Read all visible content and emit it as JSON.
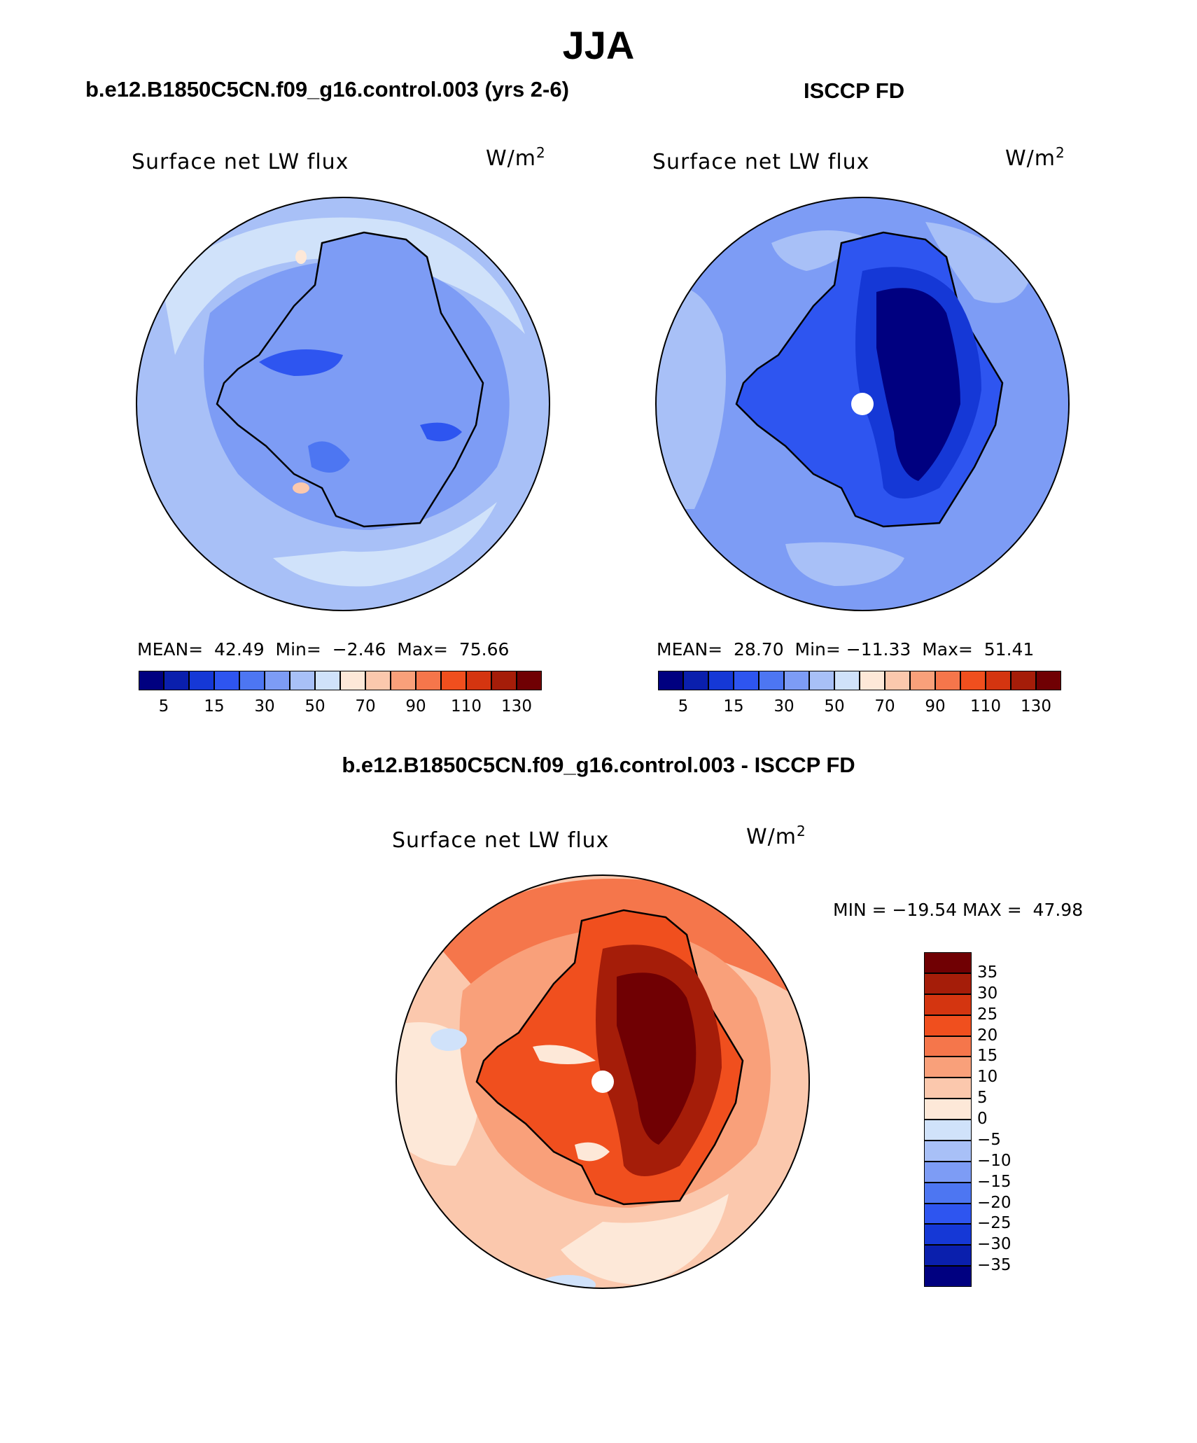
{
  "figure": {
    "season_title": "JJA",
    "model_case_title": "b.e12.B1850C5CN.f09_g16.control.003 (yrs 2-6)",
    "obs_title": "ISCCP FD",
    "diff_title": "b.e12.B1850C5CN.f09_g16.control.003 - ISCCP FD"
  },
  "panels": {
    "model": {
      "variable": "Surface net LW flux",
      "units_base": "W/m",
      "units_exp": "2",
      "mean_label": "MEAN=",
      "mean": "42.49",
      "min_label": "Min=",
      "min": "−2.46",
      "max_label": "Max=",
      "max": "75.66"
    },
    "obs": {
      "variable": "Surface net LW flux",
      "units_base": "W/m",
      "units_exp": "2",
      "mean_label": "MEAN=",
      "mean": "28.70",
      "min_label": "Min=",
      "min": "−11.33",
      "max_label": "Max=",
      "max": "51.41"
    },
    "diff": {
      "variable": "Surface net LW flux",
      "units_base": "W/m",
      "units_exp": "2",
      "minmax_text": "MIN = −19.54 MAX =  47.98"
    }
  },
  "colorbars": {
    "abs": {
      "colors": [
        "#000080",
        "#0a1fad",
        "#1538d6",
        "#2e55f0",
        "#4d76f2",
        "#7d9cf5",
        "#a8c0f7",
        "#d0e2fa",
        "#fde8d8",
        "#fbc8ad",
        "#f9a07a",
        "#f5764b",
        "#f04f1e",
        "#d43510",
        "#a51d09",
        "#700003"
      ],
      "tick_labels": [
        "5",
        "15",
        "30",
        "50",
        "70",
        "90",
        "110",
        "130"
      ]
    },
    "diff": {
      "colors": [
        "#000080",
        "#0a1fad",
        "#1538d6",
        "#2e55f0",
        "#4d76f2",
        "#7d9cf5",
        "#a8c0f7",
        "#d0e2fa",
        "#fde8d8",
        "#fbc8ad",
        "#f9a07a",
        "#f5764b",
        "#f04f1e",
        "#d43510",
        "#a51d09",
        "#700003"
      ],
      "tick_labels": [
        "35",
        "30",
        "25",
        "20",
        "15",
        "10",
        "5",
        "0",
        "−5",
        "−10",
        "−15",
        "−20",
        "−25",
        "−30",
        "−35"
      ]
    }
  },
  "map_colors": {
    "model": {
      "ocean": "#a8c0f7",
      "ocean_light": "#d0e2fa",
      "land": "#7d9cf5",
      "land_dark": "#4d76f2",
      "accent": "#fbc8ad"
    },
    "obs": {
      "ocean": "#7d9cf5",
      "ocean_light": "#a8c0f7",
      "land": "#2e55f0",
      "land_dark": "#1538d6",
      "core": "#000080"
    },
    "diff": {
      "ocean": "#f9a07a",
      "ocean_light": "#fde8d8",
      "ocean_mid": "#fbc8ad",
      "land": "#f04f1e",
      "land_dark": "#a51d09",
      "core": "#700003",
      "cool": "#d0e2fa"
    }
  }
}
